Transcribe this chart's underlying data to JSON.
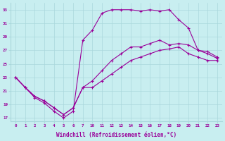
{
  "xlabel": "Windchill (Refroidissement éolien,°C)",
  "bg_color": "#c8eef0",
  "line_color": "#990099",
  "grid_color": "#aad8dc",
  "ylim": [
    16.5,
    34
  ],
  "xlim": [
    -0.3,
    23.3
  ],
  "yticks": [
    17,
    19,
    21,
    23,
    25,
    27,
    29,
    31,
    33
  ],
  "xtick_positions": [
    0,
    1,
    2,
    3,
    4,
    5,
    6,
    7,
    10,
    11,
    12,
    13,
    14,
    15,
    16,
    17,
    18,
    19,
    20,
    21,
    22,
    23
  ],
  "xtick_labels": [
    "0",
    "1",
    "2",
    "3",
    "4",
    "5",
    "6",
    "7",
    "10",
    "11",
    "12",
    "13",
    "14",
    "15",
    "16",
    "17",
    "18",
    "19",
    "20",
    "21",
    "22",
    "23"
  ],
  "line1_x": [
    0,
    1,
    2,
    3,
    4,
    5,
    6,
    7,
    10,
    11,
    12,
    13,
    14,
    15,
    16,
    17,
    18,
    19,
    20,
    21,
    22,
    23
  ],
  "line1_y": [
    23.0,
    21.5,
    20.0,
    19.2,
    18.0,
    17.0,
    18.0,
    28.5,
    30.0,
    32.5,
    33.0,
    33.0,
    33.0,
    32.8,
    33.0,
    32.8,
    33.0,
    31.5,
    30.3,
    27.0,
    26.8,
    26.0
  ],
  "line2_x": [
    0,
    1,
    2,
    3,
    4,
    5,
    6,
    7,
    10,
    11,
    12,
    13,
    14,
    15,
    16,
    17,
    18,
    19,
    20,
    21,
    22,
    23
  ],
  "line2_y": [
    23.0,
    21.5,
    20.2,
    19.5,
    18.5,
    17.5,
    18.5,
    21.5,
    22.5,
    24.0,
    25.5,
    26.5,
    27.5,
    27.5,
    28.0,
    28.5,
    27.8,
    28.0,
    27.8,
    27.0,
    26.5,
    25.8
  ],
  "line3_x": [
    0,
    1,
    2,
    3,
    4,
    5,
    6,
    7,
    10,
    11,
    12,
    13,
    14,
    15,
    16,
    17,
    18,
    19,
    20,
    21,
    22,
    23
  ],
  "line3_y": [
    23.0,
    21.5,
    20.2,
    19.5,
    18.5,
    17.5,
    18.5,
    21.5,
    21.5,
    22.5,
    23.5,
    24.5,
    25.5,
    26.0,
    26.5,
    27.0,
    27.2,
    27.5,
    26.5,
    26.0,
    25.5,
    25.5
  ]
}
